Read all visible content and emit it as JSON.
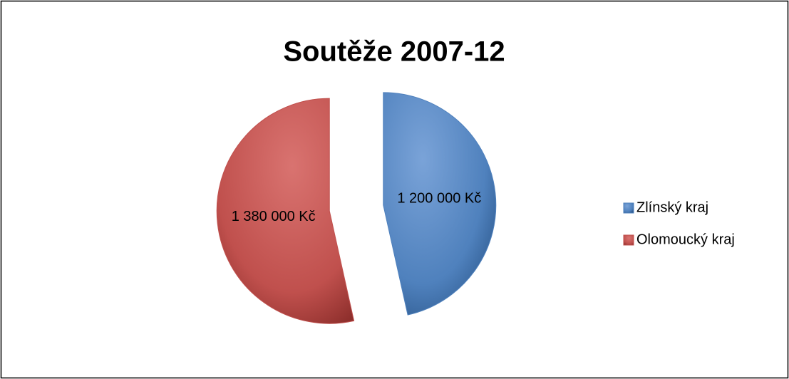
{
  "chart_data": {
    "type": "pie",
    "title": "Soutěže 2007-12",
    "categories": [
      "Zlínský kraj",
      "Olomoucký kraj"
    ],
    "values": [
      1200000,
      1380000
    ],
    "value_labels": [
      "1 200 000 Kč",
      "1 380 000 Kč"
    ],
    "colors": [
      "#4f81bd",
      "#c0504d"
    ],
    "legend": "right"
  }
}
